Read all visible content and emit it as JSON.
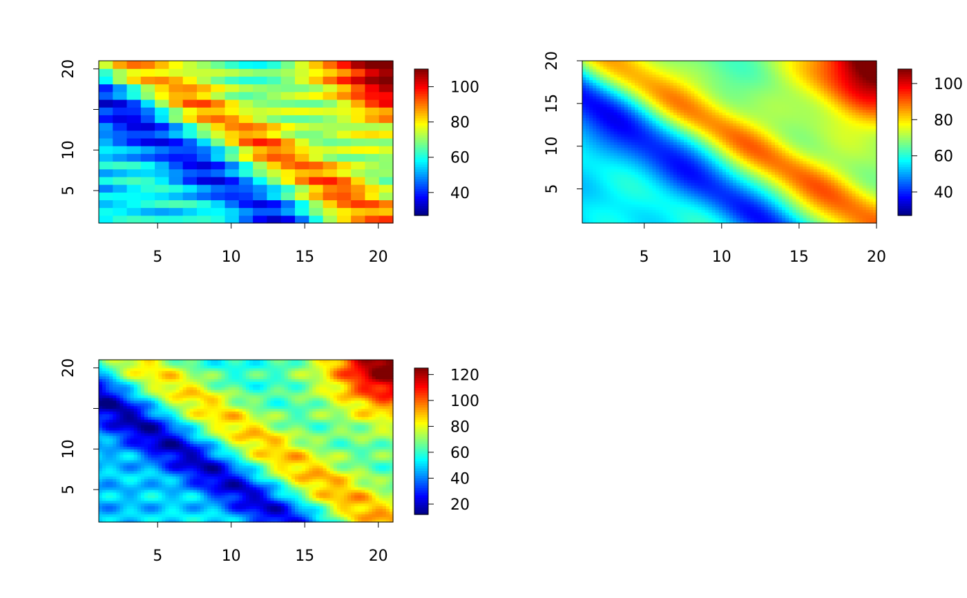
{
  "colormap": [
    "#00007F",
    "#0000FF",
    "#007FFF",
    "#00FFFF",
    "#7FFF7F",
    "#FFFF00",
    "#FF7F00",
    "#FF0000",
    "#7F0000"
  ],
  "chart_data": [
    {
      "type": "heatmap",
      "style": "blocky",
      "x_range": [
        1,
        21
      ],
      "y_range": [
        1,
        21
      ],
      "x_ticks": [
        5,
        10,
        15,
        20
      ],
      "y_ticks": [
        5,
        10,
        15,
        20
      ],
      "y_tick_labels": [
        "5",
        "10",
        "",
        "20"
      ],
      "x_tick_labels": [
        "5",
        "10",
        "15",
        "20"
      ],
      "color_range": [
        27,
        110
      ],
      "colorbar_ticks": [
        40,
        60,
        80,
        100
      ],
      "colorbar_tick_labels": [
        "40",
        "60",
        "80",
        "100"
      ],
      "grid": false,
      "legend_position": "right"
    },
    {
      "type": "heatmap",
      "style": "smooth",
      "x_range": [
        1,
        20
      ],
      "y_range": [
        1,
        20
      ],
      "x_ticks": [
        5,
        10,
        15,
        20
      ],
      "y_ticks": [
        5,
        10,
        15,
        20
      ],
      "y_tick_labels": [
        "5",
        "10",
        "15",
        "20"
      ],
      "x_tick_labels": [
        "5",
        "10",
        "15",
        "20"
      ],
      "color_range": [
        27,
        108
      ],
      "colorbar_ticks": [
        40,
        60,
        80,
        100
      ],
      "colorbar_tick_labels": [
        "40",
        "60",
        "80",
        "100"
      ],
      "grid": false,
      "legend_position": "right"
    },
    {
      "type": "heatmap",
      "style": "smooth-rippled",
      "x_range": [
        1,
        21
      ],
      "y_range": [
        1,
        21
      ],
      "x_ticks": [
        5,
        10,
        15,
        20
      ],
      "y_ticks": [
        5,
        10,
        15,
        20
      ],
      "y_tick_labels": [
        "5",
        "10",
        "",
        "20"
      ],
      "x_tick_labels": [
        "5",
        "10",
        "15",
        "20"
      ],
      "color_range": [
        12,
        125
      ],
      "colorbar_ticks": [
        20,
        40,
        60,
        80,
        100,
        120
      ],
      "colorbar_tick_labels": [
        "20",
        "40",
        "60",
        "80",
        "100",
        "120"
      ],
      "grid": false,
      "legend_position": "right"
    }
  ]
}
